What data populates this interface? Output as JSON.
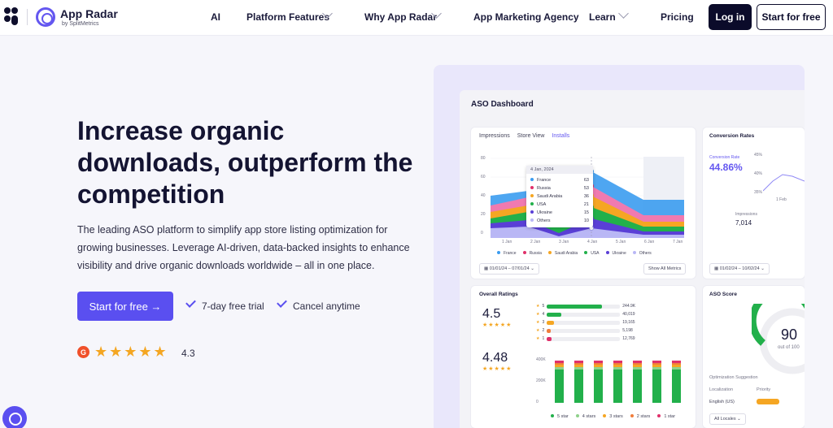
{
  "nav": {
    "brand_name": "App Radar",
    "brand_sub": "by SplitMetrics",
    "items": [
      {
        "label": "AI",
        "has_dropdown": false
      },
      {
        "label": "Platform Features",
        "has_dropdown": true
      },
      {
        "label": "Why App Radar",
        "has_dropdown": true
      },
      {
        "label": "App Marketing Agency",
        "has_dropdown": false
      },
      {
        "label": "Learn",
        "has_dropdown": true
      },
      {
        "label": "Pricing",
        "has_dropdown": false
      }
    ],
    "login_label": "Log in",
    "start_label": "Start for free"
  },
  "hero": {
    "title": "Increase organic downloads, outperform the competition",
    "subtitle": "The leading ASO platform to simplify app store listing optimization for growing businesses. Leverage AI-driven, data-backed insights to enhance visibility and drive organic downloads worldwide – all in one place.",
    "cta_label": "Start for free →",
    "perks": [
      "7-day free trial",
      "Cancel anytime"
    ],
    "g2_logo": "G",
    "stars": "★★★★★",
    "rating": "4.3"
  },
  "dashboard": {
    "title": "ASO Dashboard",
    "tabs": [
      "Impressions",
      "Store View",
      "Installs"
    ],
    "active_tab": "Installs",
    "y_ticks": [
      "80",
      "60",
      "40",
      "20",
      "0"
    ],
    "x_ticks": [
      "1 Jan",
      "2 Jan",
      "3 Jan",
      "4 Jan",
      "5 Jan",
      "6 Jan",
      "7 Jan"
    ],
    "tooltip": {
      "date": "4 Jan, 2024",
      "rows": [
        {
          "name": "France",
          "value": "63",
          "color": "#3b9cf0"
        },
        {
          "name": "Russia",
          "value": "53",
          "color": "#e0306a"
        },
        {
          "name": "Saudi Arabia",
          "value": "36",
          "color": "#f5a623"
        },
        {
          "name": "USA",
          "value": "21",
          "color": "#22b04b"
        },
        {
          "name": "Ukraine",
          "value": "15",
          "color": "#5a3fd6"
        },
        {
          "name": "Others",
          "value": "10",
          "color": "#b9b7f5"
        }
      ]
    },
    "legend": [
      {
        "name": "France",
        "color": "#3b9cf0"
      },
      {
        "name": "Russia",
        "color": "#e0306a"
      },
      {
        "name": "Saudi Arabia",
        "color": "#f5a623"
      },
      {
        "name": "USA",
        "color": "#22b04b"
      },
      {
        "name": "Ukraine",
        "color": "#5a3fd6"
      },
      {
        "name": "Others",
        "color": "#b9b7f5"
      }
    ],
    "date_range": "01/01/24 – 07/01/24",
    "show_all": "Show All Metrics",
    "conversion": {
      "title": "Conversion Rates",
      "label": "Conversion Rate",
      "value": "44.86%",
      "impressions_label": "Impressions",
      "impressions_value": "7,014",
      "y_ticks": [
        "45%",
        "40%",
        "35%"
      ],
      "x_tick": "1 Feb",
      "date_range": "01/02/24 – 10/02/24"
    },
    "ratings": {
      "title": "Overall Ratings",
      "score_top": "4.5",
      "score_bottom": "4.48",
      "stars": "★★★★★",
      "hist": [
        {
          "star": "5",
          "count": "244.9K",
          "pct": 0.75,
          "color": "#22b04b"
        },
        {
          "star": "4",
          "count": "40,019",
          "pct": 0.2,
          "color": "#22b04b"
        },
        {
          "star": "3",
          "count": "19,165",
          "pct": 0.1,
          "color": "#f5a623"
        },
        {
          "star": "2",
          "count": "5,198",
          "pct": 0.05,
          "color": "#f07d3c"
        },
        {
          "star": "1",
          "count": "12,769",
          "pct": 0.06,
          "color": "#e0306a"
        }
      ],
      "y_ticks": [
        "400K",
        "200K",
        "0"
      ],
      "legend": [
        {
          "name": "5 star",
          "color": "#22b04b"
        },
        {
          "name": "4 stars",
          "color": "#8fd18a"
        },
        {
          "name": "3 stars",
          "color": "#f5a623"
        },
        {
          "name": "2 stars",
          "color": "#f07d3c"
        },
        {
          "name": "1 star",
          "color": "#e0306a"
        }
      ]
    },
    "aso": {
      "title": "ASO Score",
      "score": "90",
      "score_sub": "out of 100",
      "suggestion": "Optimization Suggestion",
      "col_a": "Localization",
      "col_b": "Priority",
      "row_a": "English (US)",
      "locales": "All Locales"
    }
  },
  "colors": {
    "accent": "#5a4ff0",
    "dark": "#0b0b2a"
  }
}
